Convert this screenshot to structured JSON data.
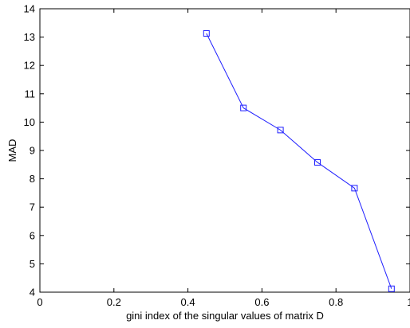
{
  "chart_data": {
    "type": "line",
    "title": "",
    "xlabel": "gini index of the singular values of matrix D",
    "ylabel": "MAD",
    "xlim": [
      0,
      1
    ],
    "ylim": [
      4,
      14
    ],
    "x_ticks": [
      0,
      0.2,
      0.4,
      0.6,
      0.8,
      1
    ],
    "x_tick_labels": [
      "0",
      "0.2",
      "0.4",
      "0.6",
      "0.8",
      "1"
    ],
    "y_ticks": [
      4,
      5,
      6,
      7,
      8,
      9,
      10,
      11,
      12,
      13,
      14
    ],
    "y_tick_labels": [
      "4",
      "5",
      "6",
      "7",
      "8",
      "9",
      "10",
      "11",
      "12",
      "13",
      "14"
    ],
    "grid": false,
    "legend": "none",
    "series": [
      {
        "x": [
          0.45,
          0.55,
          0.65,
          0.75,
          0.85,
          0.95
        ],
        "y": [
          13.13,
          10.5,
          9.72,
          8.58,
          7.67,
          4.12
        ],
        "color": "#1f1fff",
        "marker": "square"
      }
    ]
  }
}
